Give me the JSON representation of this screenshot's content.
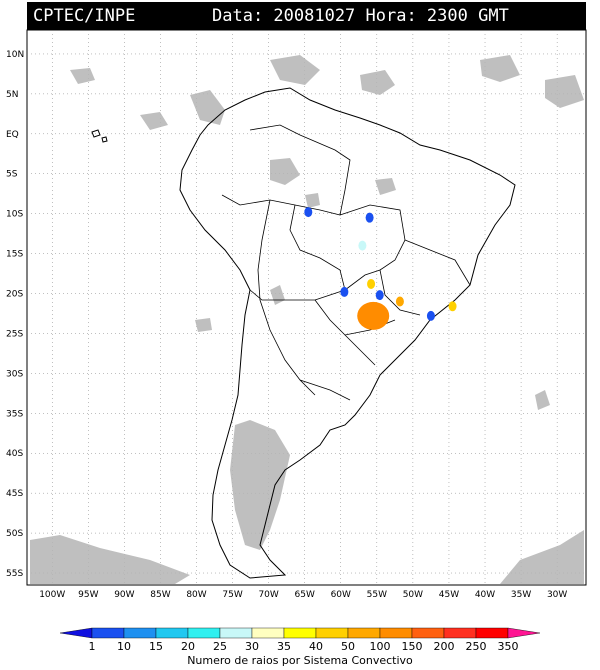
{
  "header": {
    "source": "CPTEC/INPE",
    "datetime": "Data: 20081027 Hora: 2300 GMT"
  },
  "axes": {
    "lat_labels": [
      "10N",
      "5N",
      "EQ",
      "5S",
      "10S",
      "15S",
      "20S",
      "25S",
      "30S",
      "35S",
      "40S",
      "45S",
      "50S",
      "55S"
    ],
    "lon_labels": [
      "100W",
      "95W",
      "90W",
      "85W",
      "80W",
      "75W",
      "70W",
      "65W",
      "60W",
      "55W",
      "50W",
      "45W",
      "40W",
      "35W",
      "30W"
    ]
  },
  "legend": {
    "ticks": [
      "1",
      "10",
      "15",
      "20",
      "25",
      "30",
      "35",
      "40",
      "50",
      "100",
      "150",
      "200",
      "250",
      "350"
    ],
    "colors": [
      "#1010e0",
      "#1a50f0",
      "#1e90f0",
      "#20c8f0",
      "#30f0f0",
      "#c8f8f8",
      "#ffffc0",
      "#ffff00",
      "#ffd000",
      "#ffa800",
      "#ff8c00",
      "#ff6010",
      "#ff3020",
      "#ff0000",
      "#ff1493"
    ],
    "caption": "Numero de raios por Sistema Convectivo"
  },
  "map_colors": {
    "coast": "#000000",
    "cloud": "#b4b4b4",
    "grid": "#808080"
  },
  "storms": [
    {
      "lon": -64.5,
      "lat": -9.8,
      "color": "#1a50f0"
    },
    {
      "lon": -56.0,
      "lat": -10.5,
      "color": "#1a50f0"
    },
    {
      "lon": -57.0,
      "lat": -14.0,
      "color": "#c8f8f8"
    },
    {
      "lon": -55.8,
      "lat": -18.8,
      "color": "#ffd000"
    },
    {
      "lon": -59.5,
      "lat": -19.8,
      "color": "#1a50f0"
    },
    {
      "lon": -54.6,
      "lat": -20.2,
      "color": "#1a50f0"
    },
    {
      "lon": -55.5,
      "lat": -22.8,
      "color": "#ff8c00"
    },
    {
      "lon": -51.8,
      "lat": -21.0,
      "color": "#ffa800"
    },
    {
      "lon": -47.5,
      "lat": -22.8,
      "color": "#1a50f0"
    },
    {
      "lon": -44.5,
      "lat": -21.6,
      "color": "#ffd000"
    }
  ]
}
